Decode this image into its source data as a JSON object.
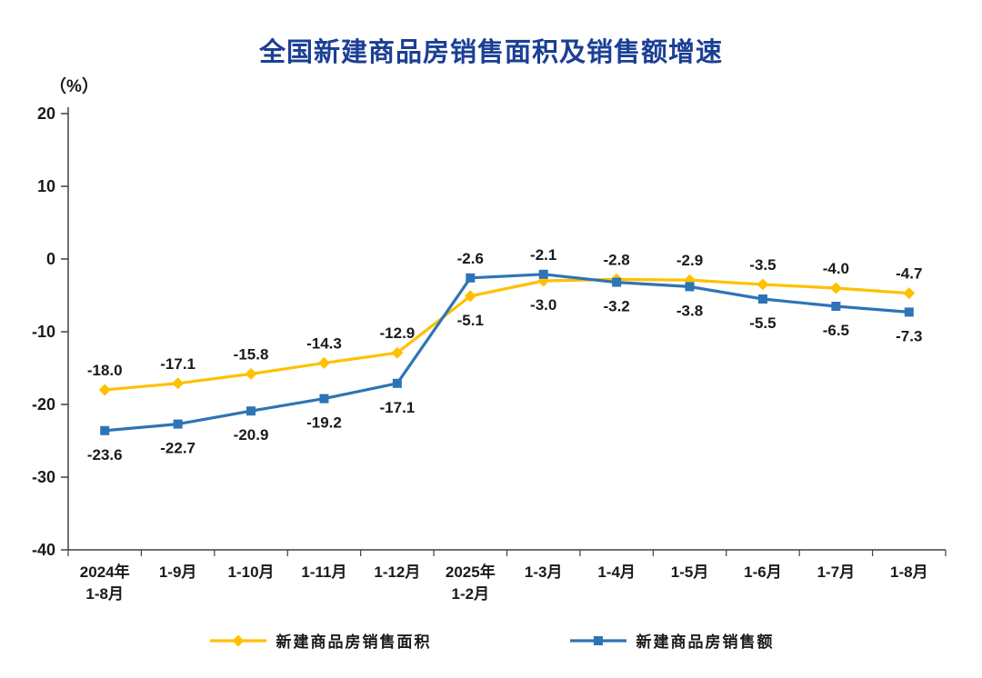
{
  "title": "全国新建商品房销售面积及销售额增速",
  "unit_label": "（%）",
  "colors": {
    "title_text": "#1B3F94",
    "axis_line": "#404040",
    "label_text": "#1A1A1A",
    "background": "#FFFFFF"
  },
  "chart_data": {
    "type": "line",
    "title": "全国新建商品房销售面积及销售额增速",
    "ylabel": "（%）",
    "xlabel": "",
    "ylim": [
      -40,
      20
    ],
    "yticks": [
      20,
      10,
      0,
      -10,
      -20,
      -30,
      -40
    ],
    "grid": false,
    "legend_position": "bottom",
    "categories": [
      "2024年\n1-8月",
      "1-9月",
      "1-10月",
      "1-11月",
      "1-12月",
      "2025年\n1-2月",
      "1-3月",
      "1-4月",
      "1-5月",
      "1-6月",
      "1-7月",
      "1-8月"
    ],
    "series": [
      {
        "name": "新建商品房销售面积",
        "marker": "diamond",
        "color": "#FFC000",
        "values": [
          -18.0,
          -17.1,
          -15.8,
          -14.3,
          -12.9,
          -5.1,
          -3.0,
          -2.8,
          -2.9,
          -3.5,
          -4.0,
          -4.7
        ]
      },
      {
        "name": "新建商品房销售额",
        "marker": "square",
        "color": "#2E74B5",
        "values": [
          -23.6,
          -22.7,
          -20.9,
          -19.2,
          -17.1,
          -2.6,
          -2.1,
          -3.2,
          -3.8,
          -5.5,
          -6.5,
          -7.3
        ]
      }
    ]
  }
}
